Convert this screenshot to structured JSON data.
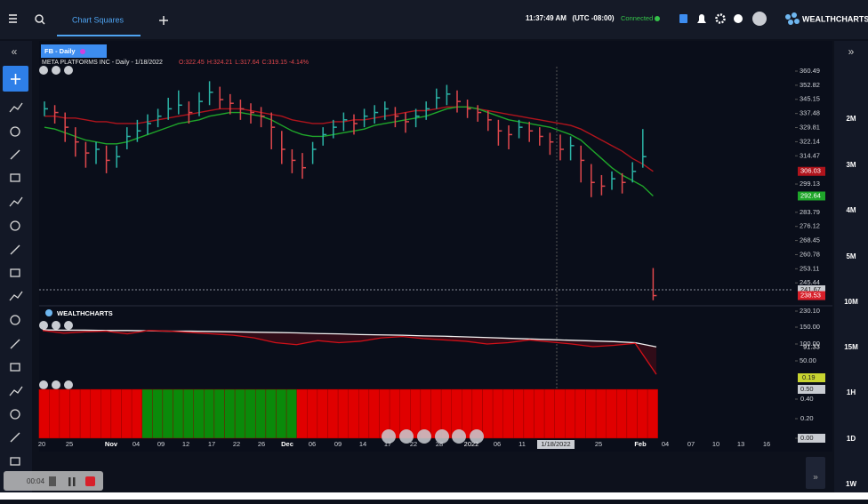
{
  "top_bar": {
    "tab": "Chart Squares",
    "time": "11:37:49 AM",
    "timezone": "(UTC -08:00)",
    "status": "Connected",
    "logo": "WEALTHCHARTS"
  },
  "timeframes": [
    "2M",
    "3M",
    "4M",
    "5M",
    "10M",
    "15M",
    "1H",
    "1D",
    "1W"
  ],
  "recorder": {
    "time": "00:04"
  },
  "chart_data": {
    "type": "ohlc",
    "symbol_tag": "FB - Daily",
    "title": "META PLATFORMS INC - Daily - 1/18/2022",
    "ohlc_text": [
      "O:322.45",
      "H:324.21",
      "L:317.64",
      "C:319.15 -4.14%"
    ],
    "x_labels": [
      "20",
      "25",
      "Nov",
      "04",
      "09",
      "12",
      "17",
      "22",
      "26",
      "Dec",
      "06",
      "09",
      "14",
      "17",
      "22",
      "28",
      "2022",
      "06",
      "11",
      "1/18/2022",
      "25",
      "Feb",
      "04",
      "07",
      "10",
      "13",
      "16"
    ],
    "ylim": [
      227.2,
      362.9
    ],
    "yticks": [
      360.49,
      352.82,
      345.15,
      337.48,
      329.81,
      322.14,
      314.47,
      299.13,
      283.79,
      276.12,
      268.45,
      260.78,
      253.11,
      245.44,
      {
        "value": 230.1,
        "label": "230.10"
      }
    ],
    "close": [
      340,
      338,
      330,
      322,
      316,
      318,
      312,
      314,
      325,
      328,
      332,
      336,
      340,
      342,
      338,
      344,
      349,
      345,
      343,
      340,
      338,
      336,
      330,
      318,
      312,
      308,
      318,
      326,
      330,
      334,
      332,
      336,
      338,
      340,
      336,
      333,
      336,
      340,
      346,
      348,
      344,
      340,
      338,
      334,
      328,
      326,
      330,
      328,
      325,
      322,
      318,
      320,
      312,
      300,
      298,
      302,
      300,
      306,
      314,
      238.53
    ],
    "high": [
      344,
      342,
      338,
      330,
      322,
      322,
      320,
      320,
      330,
      334,
      337,
      340,
      346,
      350,
      344,
      349,
      355,
      352,
      348,
      345,
      343,
      341,
      338,
      328,
      318,
      316,
      322,
      330,
      334,
      338,
      337,
      340,
      342,
      344,
      341,
      338,
      340,
      344,
      351,
      353,
      350,
      345,
      342,
      339,
      334,
      331,
      334,
      333,
      330,
      327,
      326,
      325,
      320,
      310,
      304,
      306,
      305,
      311,
      329,
      253.5
    ],
    "low": [
      336,
      332,
      322,
      314,
      308,
      310,
      305,
      308,
      318,
      322,
      326,
      330,
      334,
      337,
      332,
      336,
      342,
      340,
      337,
      334,
      332,
      330,
      318,
      310,
      305,
      302,
      310,
      320,
      324,
      328,
      326,
      330,
      332,
      334,
      330,
      327,
      330,
      334,
      340,
      342,
      338,
      335,
      333,
      328,
      320,
      318,
      324,
      322,
      320,
      315,
      312,
      312,
      300,
      292,
      293,
      296,
      294,
      300,
      308,
      236
    ],
    "up_color": "#2bb3a6",
    "down_color": "#e0474c",
    "moving_averages": [
      {
        "color": "#b0141c",
        "values": [
          336,
          336,
          335,
          335,
          334,
          333,
          333,
          332,
          332,
          332,
          333,
          334,
          335,
          336,
          337,
          338,
          339,
          340,
          340,
          340,
          339,
          338,
          337,
          336,
          334,
          333,
          332,
          332,
          333,
          333,
          334,
          334,
          335,
          336,
          337,
          338,
          339,
          339,
          340,
          341,
          341,
          341,
          340,
          339,
          338,
          337,
          336,
          335,
          334,
          333,
          332,
          331,
          329,
          326,
          323,
          320,
          317,
          313,
          310,
          306.03
        ]
      },
      {
        "color": "#1fa62a",
        "values": [
          330,
          329,
          327,
          325,
          323,
          322,
          321,
          321,
          322,
          324,
          326,
          328,
          330,
          332,
          333,
          334,
          336,
          337,
          338,
          338,
          337,
          336,
          334,
          331,
          328,
          326,
          325,
          325,
          326,
          327,
          328,
          329,
          331,
          332,
          333,
          334,
          335,
          336,
          338,
          340,
          341,
          341,
          340,
          338,
          336,
          334,
          333,
          332,
          331,
          330,
          328,
          326,
          323,
          318,
          313,
          308,
          304,
          301,
          298,
          292.64
        ]
      }
    ],
    "price_line": 241.67,
    "price_line_color": "#8a8f99",
    "last_tag": 238.53,
    "oscillator": {
      "logo": "WEALTHCHARTS",
      "ylim": [
        -8,
        179
      ],
      "yticks": [
        {
          "value": 150,
          "label": "150.00"
        },
        {
          "value": 100,
          "label": "100.00"
        },
        {
          "value": 50,
          "label": "50.00"
        }
      ],
      "series": [
        {
          "color": "#f2f2f2",
          "values": [
            142,
            141,
            141,
            140,
            140,
            139,
            138,
            138,
            137,
            136,
            135,
            134,
            133,
            131,
            130,
            128,
            127,
            126,
            124,
            123,
            121,
            119,
            117,
            115,
            113,
            111,
            109,
            107,
            104,
            91.33
          ]
        },
        {
          "color": "#d01018",
          "values": [
            140,
            132,
            136,
            138,
            130,
            140,
            138,
            134,
            130,
            126,
            118,
            104,
            98,
            110,
            104,
            108,
            118,
            122,
            116,
            112,
            108,
            100,
            104,
            112,
            106,
            100,
            92,
            96,
            102,
            10
          ]
        }
      ]
    },
    "regime": {
      "ylim": [
        0,
        0.5
      ],
      "yticks": [
        {
          "value": 0.4,
          "label": "0.40"
        },
        {
          "value": 0.2,
          "label": "0.20"
        },
        {
          "value": 0,
          "label": "0.00"
        }
      ],
      "top_label": "0.50",
      "value": 0.19,
      "colors": [
        "#e00000",
        "#e00000",
        "#e00000",
        "#e00000",
        "#e00000",
        "#e00000",
        "#e00000",
        "#e00000",
        "#e00000",
        "#e00000",
        "#0a8a0a",
        "#0a8a0a",
        "#0a8a0a",
        "#0a8a0a",
        "#0a8a0a",
        "#0a8a0a",
        "#0a8a0a",
        "#0a8a0a",
        "#0a8a0a",
        "#0a8a0a",
        "#0a8a0a",
        "#0a8a0a",
        "#0a8a0a",
        "#0a8a0a",
        "#0a8a0a",
        "#e00000",
        "#e00000",
        "#e00000",
        "#e00000",
        "#e00000",
        "#e00000",
        "#e00000",
        "#e00000",
        "#e00000",
        "#e00000",
        "#e00000",
        "#e00000",
        "#e00000",
        "#e00000",
        "#e00000",
        "#e00000",
        "#e00000",
        "#e00000",
        "#e00000",
        "#e00000",
        "#e00000",
        "#e00000",
        "#e00000",
        "#e00000",
        "#e00000",
        "#e00000",
        "#e00000",
        "#e00000",
        "#e00000",
        "#e00000",
        "#e00000",
        "#e00000",
        "#e00000",
        "#e00000",
        "#e00000"
      ]
    }
  }
}
